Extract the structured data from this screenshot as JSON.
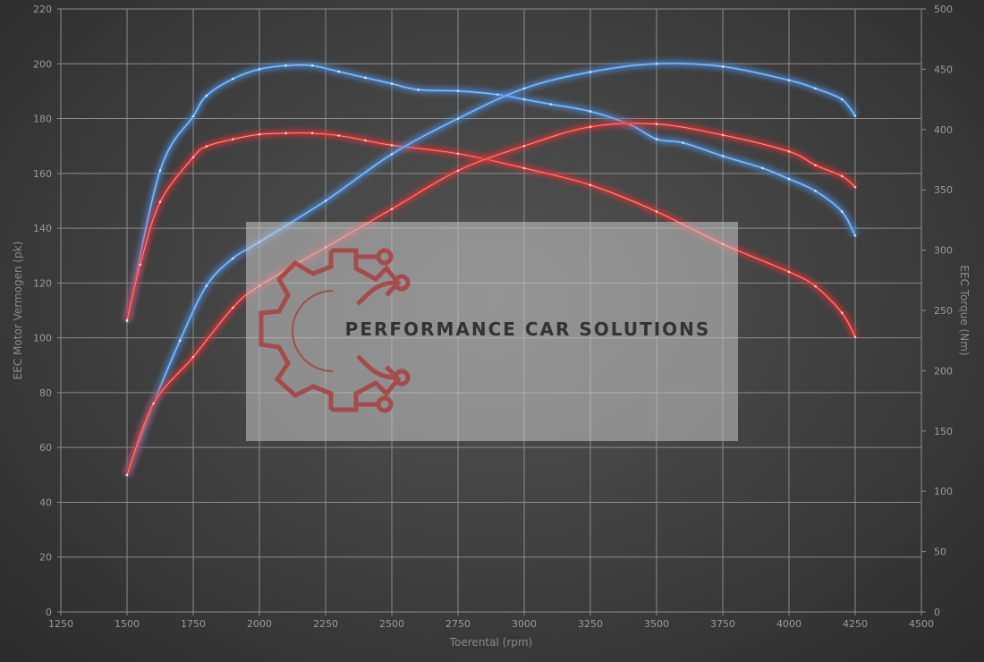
{
  "chart_data": {
    "type": "line",
    "title": "",
    "xlabel": "Toerental (rpm)",
    "ylabel": "EEC Motor Vermogen (pk)",
    "ylabel_right": "EEC Torque (Nm)",
    "xlim": [
      1250,
      4500
    ],
    "ylim": [
      0,
      220
    ],
    "ylim_right": [
      0,
      500
    ],
    "grid": true,
    "x_ticks": [
      "1250",
      "1500",
      "1750",
      "2000",
      "2250",
      "2500",
      "2750",
      "3000",
      "3250",
      "3500",
      "3750",
      "4000",
      "4250",
      "4500"
    ],
    "y_ticks": [
      "0",
      "20",
      "40",
      "60",
      "80",
      "100",
      "120",
      "140",
      "160",
      "180",
      "200",
      "220"
    ],
    "y_ticks_right": [
      "0",
      "50",
      "100",
      "150",
      "200",
      "250",
      "300",
      "350",
      "400",
      "450",
      "500"
    ],
    "series": [
      {
        "axis": "right",
        "color": "#4a8fe0",
        "x": [
          1500,
          1625,
          1750,
          1800,
          1900,
          2000,
          2100,
          2200,
          2300,
          2400,
          2500,
          2600,
          2750,
          2900,
          3000,
          3100,
          3250,
          3400,
          3500,
          3600,
          3750,
          3900,
          4000,
          4100,
          4200,
          4250
        ],
        "values": [
          241,
          366,
          411,
          428,
          442,
          450,
          453,
          453,
          448,
          443,
          438,
          433,
          432,
          429,
          425,
          421,
          415,
          404,
          392,
          389,
          378,
          368,
          359,
          349,
          332,
          312
        ]
      },
      {
        "axis": "right",
        "color": "#e03030",
        "x": [
          1500,
          1550,
          1625,
          1750,
          1800,
          1900,
          2000,
          2100,
          2200,
          2300,
          2400,
          2500,
          2750,
          3000,
          3250,
          3500,
          3750,
          4000,
          4100,
          4200,
          4250
        ],
        "values": [
          242,
          288,
          340,
          377,
          386,
          392,
          396,
          397,
          397,
          395,
          391,
          387,
          380,
          368,
          354,
          332,
          305,
          282,
          270,
          248,
          228
        ]
      },
      {
        "axis": "left",
        "color": "#4a8fe0",
        "x": [
          1500,
          1600,
          1700,
          1800,
          1900,
          2000,
          2250,
          2500,
          2750,
          3000,
          3250,
          3500,
          3750,
          4000,
          4100,
          4200,
          4250
        ],
        "values": [
          50,
          76,
          99,
          119,
          129,
          135,
          150,
          167,
          180,
          191,
          197,
          200,
          199,
          194,
          191,
          187,
          181
        ]
      },
      {
        "axis": "left",
        "color": "#e03030",
        "x": [
          1500,
          1600,
          1750,
          1900,
          2000,
          2250,
          2500,
          2750,
          3000,
          3250,
          3500,
          3750,
          4000,
          4100,
          4200,
          4250
        ],
        "values": [
          50,
          76,
          93,
          111,
          119,
          133,
          147,
          161,
          170,
          177,
          178,
          174,
          168,
          163,
          159,
          155
        ]
      }
    ]
  },
  "watermark": {
    "text": "PERFORMANCE CAR SOLUTIONS",
    "logo_color": "#a84040"
  }
}
